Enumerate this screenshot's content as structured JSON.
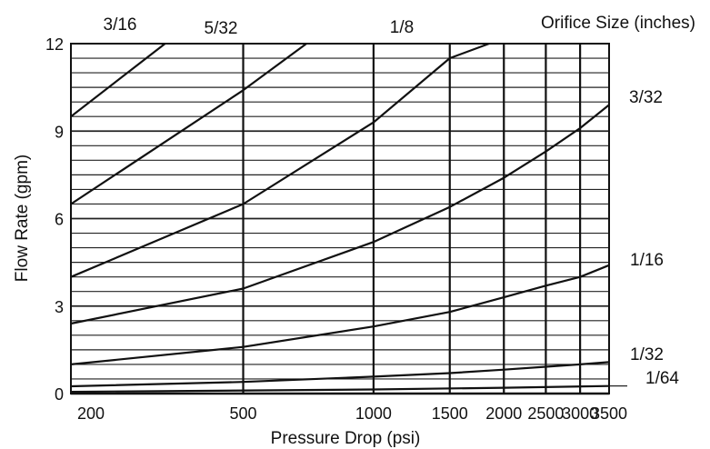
{
  "chart_data": {
    "type": "line",
    "title": "",
    "xlabel": "Pressure Drop (psi)",
    "ylabel": "Flow Rate (gpm)",
    "legend_title": "Orifice Size (inches)",
    "x_scale": "log",
    "xlim": [
      200,
      3500
    ],
    "ylim": [
      0,
      12
    ],
    "grid": true,
    "x_ticks": [
      200,
      500,
      1000,
      1500,
      2000,
      2500,
      3000,
      3500
    ],
    "x_tick_labels": [
      "200",
      "500",
      "1000",
      "1500",
      "2000",
      "2500",
      "3000",
      "3500"
    ],
    "y_ticks": [
      0,
      3,
      6,
      9,
      12
    ],
    "y_tick_labels": [
      "0",
      "3",
      "6",
      "9",
      "12"
    ],
    "series": [
      {
        "name": "3/16",
        "x": [
          200,
          330
        ],
        "y": [
          9.5,
          12.0
        ]
      },
      {
        "name": "5/32",
        "x": [
          200,
          500,
          700
        ],
        "y": [
          6.5,
          10.4,
          12.0
        ]
      },
      {
        "name": "1/8",
        "x": [
          200,
          500,
          1000,
          1500,
          1850
        ],
        "y": [
          4.0,
          6.5,
          9.3,
          11.5,
          12.0
        ]
      },
      {
        "name": "3/32",
        "x": [
          200,
          500,
          1000,
          1500,
          2000,
          2500,
          3000,
          3500
        ],
        "y": [
          2.4,
          3.6,
          5.2,
          6.4,
          7.4,
          8.3,
          9.1,
          9.9
        ]
      },
      {
        "name": "1/16",
        "x": [
          200,
          500,
          1000,
          1500,
          2000,
          2500,
          3000,
          3500
        ],
        "y": [
          1.0,
          1.6,
          2.3,
          2.8,
          3.3,
          3.7,
          4.0,
          4.4
        ]
      },
      {
        "name": "1/32",
        "x": [
          200,
          500,
          1000,
          1500,
          2000,
          2500,
          3000,
          3500
        ],
        "y": [
          0.25,
          0.4,
          0.58,
          0.7,
          0.82,
          0.92,
          1.0,
          1.08
        ]
      },
      {
        "name": "1/64",
        "x": [
          200,
          1000,
          2000,
          3500
        ],
        "y": [
          0.06,
          0.14,
          0.2,
          0.26
        ]
      }
    ]
  }
}
